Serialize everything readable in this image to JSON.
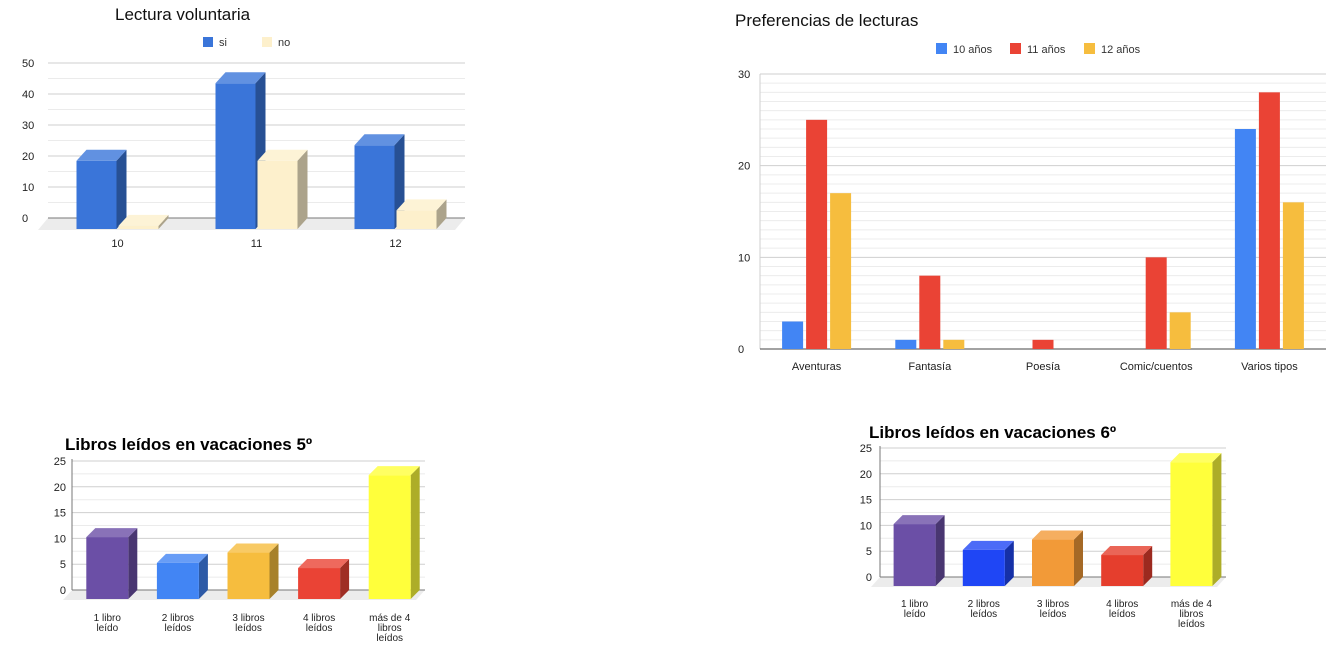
{
  "chart_data": [
    {
      "type": "bar",
      "title": "Lectura voluntaria",
      "categories": [
        "10",
        "11",
        "12"
      ],
      "series": [
        {
          "name": "si",
          "values": [
            22,
            47,
            27
          ],
          "color": "#3a75d9"
        },
        {
          "name": "no",
          "values": [
            1,
            22,
            6
          ],
          "color": "#fdf0cc"
        }
      ],
      "ylim": [
        0,
        50
      ],
      "yticks": [
        "50",
        "40",
        "30",
        "20",
        "10",
        "0"
      ],
      "legend_position": "top",
      "grid": true
    },
    {
      "type": "bar",
      "title": "Preferencias de lecturas",
      "categories": [
        "Aventuras",
        "Fantasía",
        "Poesía",
        "Comic/cuentos",
        "Varios tipos"
      ],
      "series": [
        {
          "name": "10 años",
          "values": [
            3,
            1,
            0,
            0,
            24
          ],
          "color": "#4285f4"
        },
        {
          "name": "11 años",
          "values": [
            25,
            8,
            1,
            10,
            28
          ],
          "color": "#ea4335"
        },
        {
          "name": "12 años",
          "values": [
            17,
            1,
            0,
            4,
            16
          ],
          "color": "#f6bd3e"
        }
      ],
      "ylim": [
        0,
        30
      ],
      "yticks": [
        "30",
        "20",
        "10",
        "0"
      ],
      "legend_position": "top",
      "grid": true
    },
    {
      "type": "bar",
      "title": "Libros leídos en vacaciones 5º",
      "categories": [
        "1 libro leído",
        "2 libros leídos",
        "3 libros leídos",
        "4 libros leídos",
        "más de 4 libros leídos"
      ],
      "values": [
        12,
        7,
        9,
        6,
        24
      ],
      "colors": [
        "#6b4fa6",
        "#4285f4",
        "#f6bd3e",
        "#ea4335",
        "#ffff3b"
      ],
      "ylim": [
        0,
        25
      ],
      "yticks": [
        "25",
        "20",
        "15",
        "10",
        "5",
        "0"
      ],
      "grid": true
    },
    {
      "type": "bar",
      "title": "Libros leídos en vacaciones 6º",
      "categories": [
        "1 libro leído",
        "2 libros leídos",
        "3 libros leídos",
        "4 libros leídos",
        "más de 4 libros leídos"
      ],
      "values": [
        12,
        7,
        9,
        6,
        24
      ],
      "colors": [
        "#6b4fa6",
        "#1f46f5",
        "#f29a38",
        "#e53e2d",
        "#ffff3b"
      ],
      "ylim": [
        0,
        25
      ],
      "yticks": [
        "25",
        "20",
        "15",
        "10",
        "5",
        "0"
      ],
      "grid": true
    }
  ]
}
